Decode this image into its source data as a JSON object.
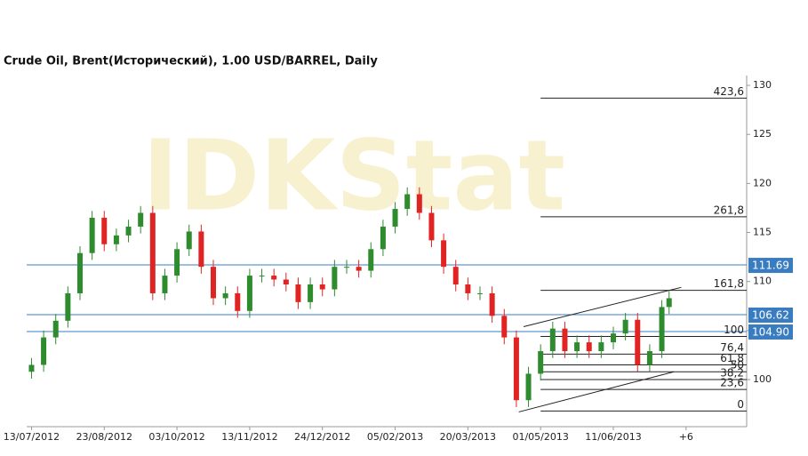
{
  "chart_data": {
    "type": "candlestick",
    "title": "Crude Oil, Brent(Исторический), 1.00 USD/BARREL, Daily",
    "watermark": "IDKStat",
    "xlim": [
      -2,
      295
    ],
    "xticks": [
      {
        "value": 0,
        "label": "13/07/2012"
      },
      {
        "value": 30,
        "label": "23/08/2012"
      },
      {
        "value": 60,
        "label": "03/10/2012"
      },
      {
        "value": 90,
        "label": "13/11/2012"
      },
      {
        "value": 120,
        "label": "24/12/2012"
      },
      {
        "value": 150,
        "label": "05/02/2013"
      },
      {
        "value": 180,
        "label": "20/03/2013"
      },
      {
        "value": 210,
        "label": "01/05/2013"
      },
      {
        "value": 240,
        "label": "11/06/2013"
      },
      {
        "value": 270,
        "label": "+6"
      }
    ],
    "ylim": [
      95.2,
      131
    ],
    "yticks": [
      100,
      105,
      110,
      115,
      120,
      125,
      130
    ],
    "up_color": "#2e8b2e",
    "down_color": "#e02424",
    "x": [
      0,
      5,
      10,
      15,
      20,
      25,
      30,
      35,
      40,
      45,
      50,
      55,
      60,
      65,
      70,
      75,
      80,
      85,
      90,
      95,
      100,
      105,
      110,
      115,
      120,
      125,
      130,
      135,
      140,
      145,
      150,
      155,
      160,
      165,
      170,
      175,
      180,
      185,
      190,
      195,
      200,
      205,
      210,
      215,
      220,
      225,
      230,
      235,
      240,
      245,
      250,
      255,
      260,
      263
    ],
    "open": [
      100.8,
      101.5,
      104.3,
      106,
      108.8,
      112.9,
      116.5,
      113.8,
      114.7,
      115.6,
      117,
      108.8,
      110.6,
      113.3,
      115.1,
      111.5,
      108.3,
      108.8,
      107,
      110.6,
      110.6,
      110.2,
      109.7,
      107.9,
      109.7,
      109.2,
      111.5,
      111.5,
      111.1,
      113.3,
      115.6,
      117.4,
      118.9,
      117,
      114.2,
      111.5,
      109.7,
      108.8,
      108.8,
      106.5,
      104.3,
      97.9,
      100.6,
      102.9,
      105.2,
      102.9,
      103.8,
      102.9,
      103.8,
      104.7,
      106.1,
      101.5,
      102.9,
      107.4
    ],
    "high": [
      102.2,
      105.0,
      106.7,
      109.5,
      113.6,
      117.2,
      117.2,
      115.4,
      116.3,
      117.7,
      117.7,
      111.3,
      114.0,
      115.8,
      115.8,
      112.2,
      109.5,
      109.5,
      111.3,
      111.3,
      111.3,
      110.9,
      110.4,
      110.4,
      110.4,
      112.2,
      112.2,
      112.2,
      114.0,
      116.3,
      118.1,
      119.6,
      119.6,
      117.7,
      114.9,
      112.2,
      110.4,
      109.5,
      109.5,
      107.2,
      105.0,
      101.3,
      103.6,
      105.9,
      105.9,
      104.5,
      104.5,
      104.5,
      105.4,
      106.8,
      106.8,
      103.6,
      108.1,
      109.0
    ],
    "low": [
      100.1,
      100.8,
      103.6,
      105.3,
      108.1,
      112.2,
      113.1,
      113.1,
      114.0,
      114.9,
      108.1,
      108.1,
      109.9,
      112.6,
      110.8,
      107.6,
      107.6,
      106.3,
      106.3,
      109.9,
      109.5,
      109.0,
      107.2,
      107.2,
      108.5,
      108.5,
      110.8,
      110.4,
      110.4,
      112.6,
      114.9,
      116.7,
      116.3,
      113.5,
      110.8,
      109.0,
      108.1,
      108.1,
      105.8,
      103.6,
      97.2,
      97.2,
      99.9,
      102.2,
      102.2,
      102.2,
      102.2,
      102.2,
      103.1,
      104.0,
      100.8,
      100.8,
      102.2,
      106.7
    ],
    "close": [
      101.5,
      104.3,
      106,
      108.8,
      112.9,
      116.5,
      113.8,
      114.7,
      115.6,
      117,
      108.8,
      110.6,
      113.3,
      115.1,
      111.5,
      108.3,
      108.8,
      107,
      110.6,
      110.6,
      110.2,
      109.7,
      107.9,
      109.7,
      109.2,
      111.5,
      111.5,
      111.1,
      113.3,
      115.6,
      117.4,
      118.9,
      117,
      114.2,
      111.5,
      109.7,
      108.8,
      108.8,
      106.5,
      104.3,
      97.9,
      100.6,
      102.9,
      105.2,
      102.9,
      103.8,
      102.9,
      103.8,
      104.7,
      106.1,
      101.5,
      102.9,
      107.4,
      108.3
    ],
    "hlines": {
      "values": [
        111.69,
        106.62,
        104.9
      ],
      "value_labels": [
        "111.69",
        "106.62",
        "104.90"
      ],
      "color": "#3a7cc0"
    },
    "fibonacci": {
      "x_start": 210,
      "labels": [
        "423,6",
        "261,8",
        "161,8",
        "100",
        "76,4",
        "61,8",
        "50",
        "38,2",
        "23,6",
        "0"
      ],
      "prices": [
        128.7,
        116.6,
        109.1,
        104.4,
        102.6,
        101.5,
        100.8,
        100,
        99,
        96.8
      ]
    },
    "trendlines": [
      {
        "x": [
          201,
          265
        ],
        "y": [
          96.7,
          100.8
        ]
      },
      {
        "x": [
          203,
          268
        ],
        "y": [
          105.4,
          109.4
        ]
      }
    ]
  }
}
